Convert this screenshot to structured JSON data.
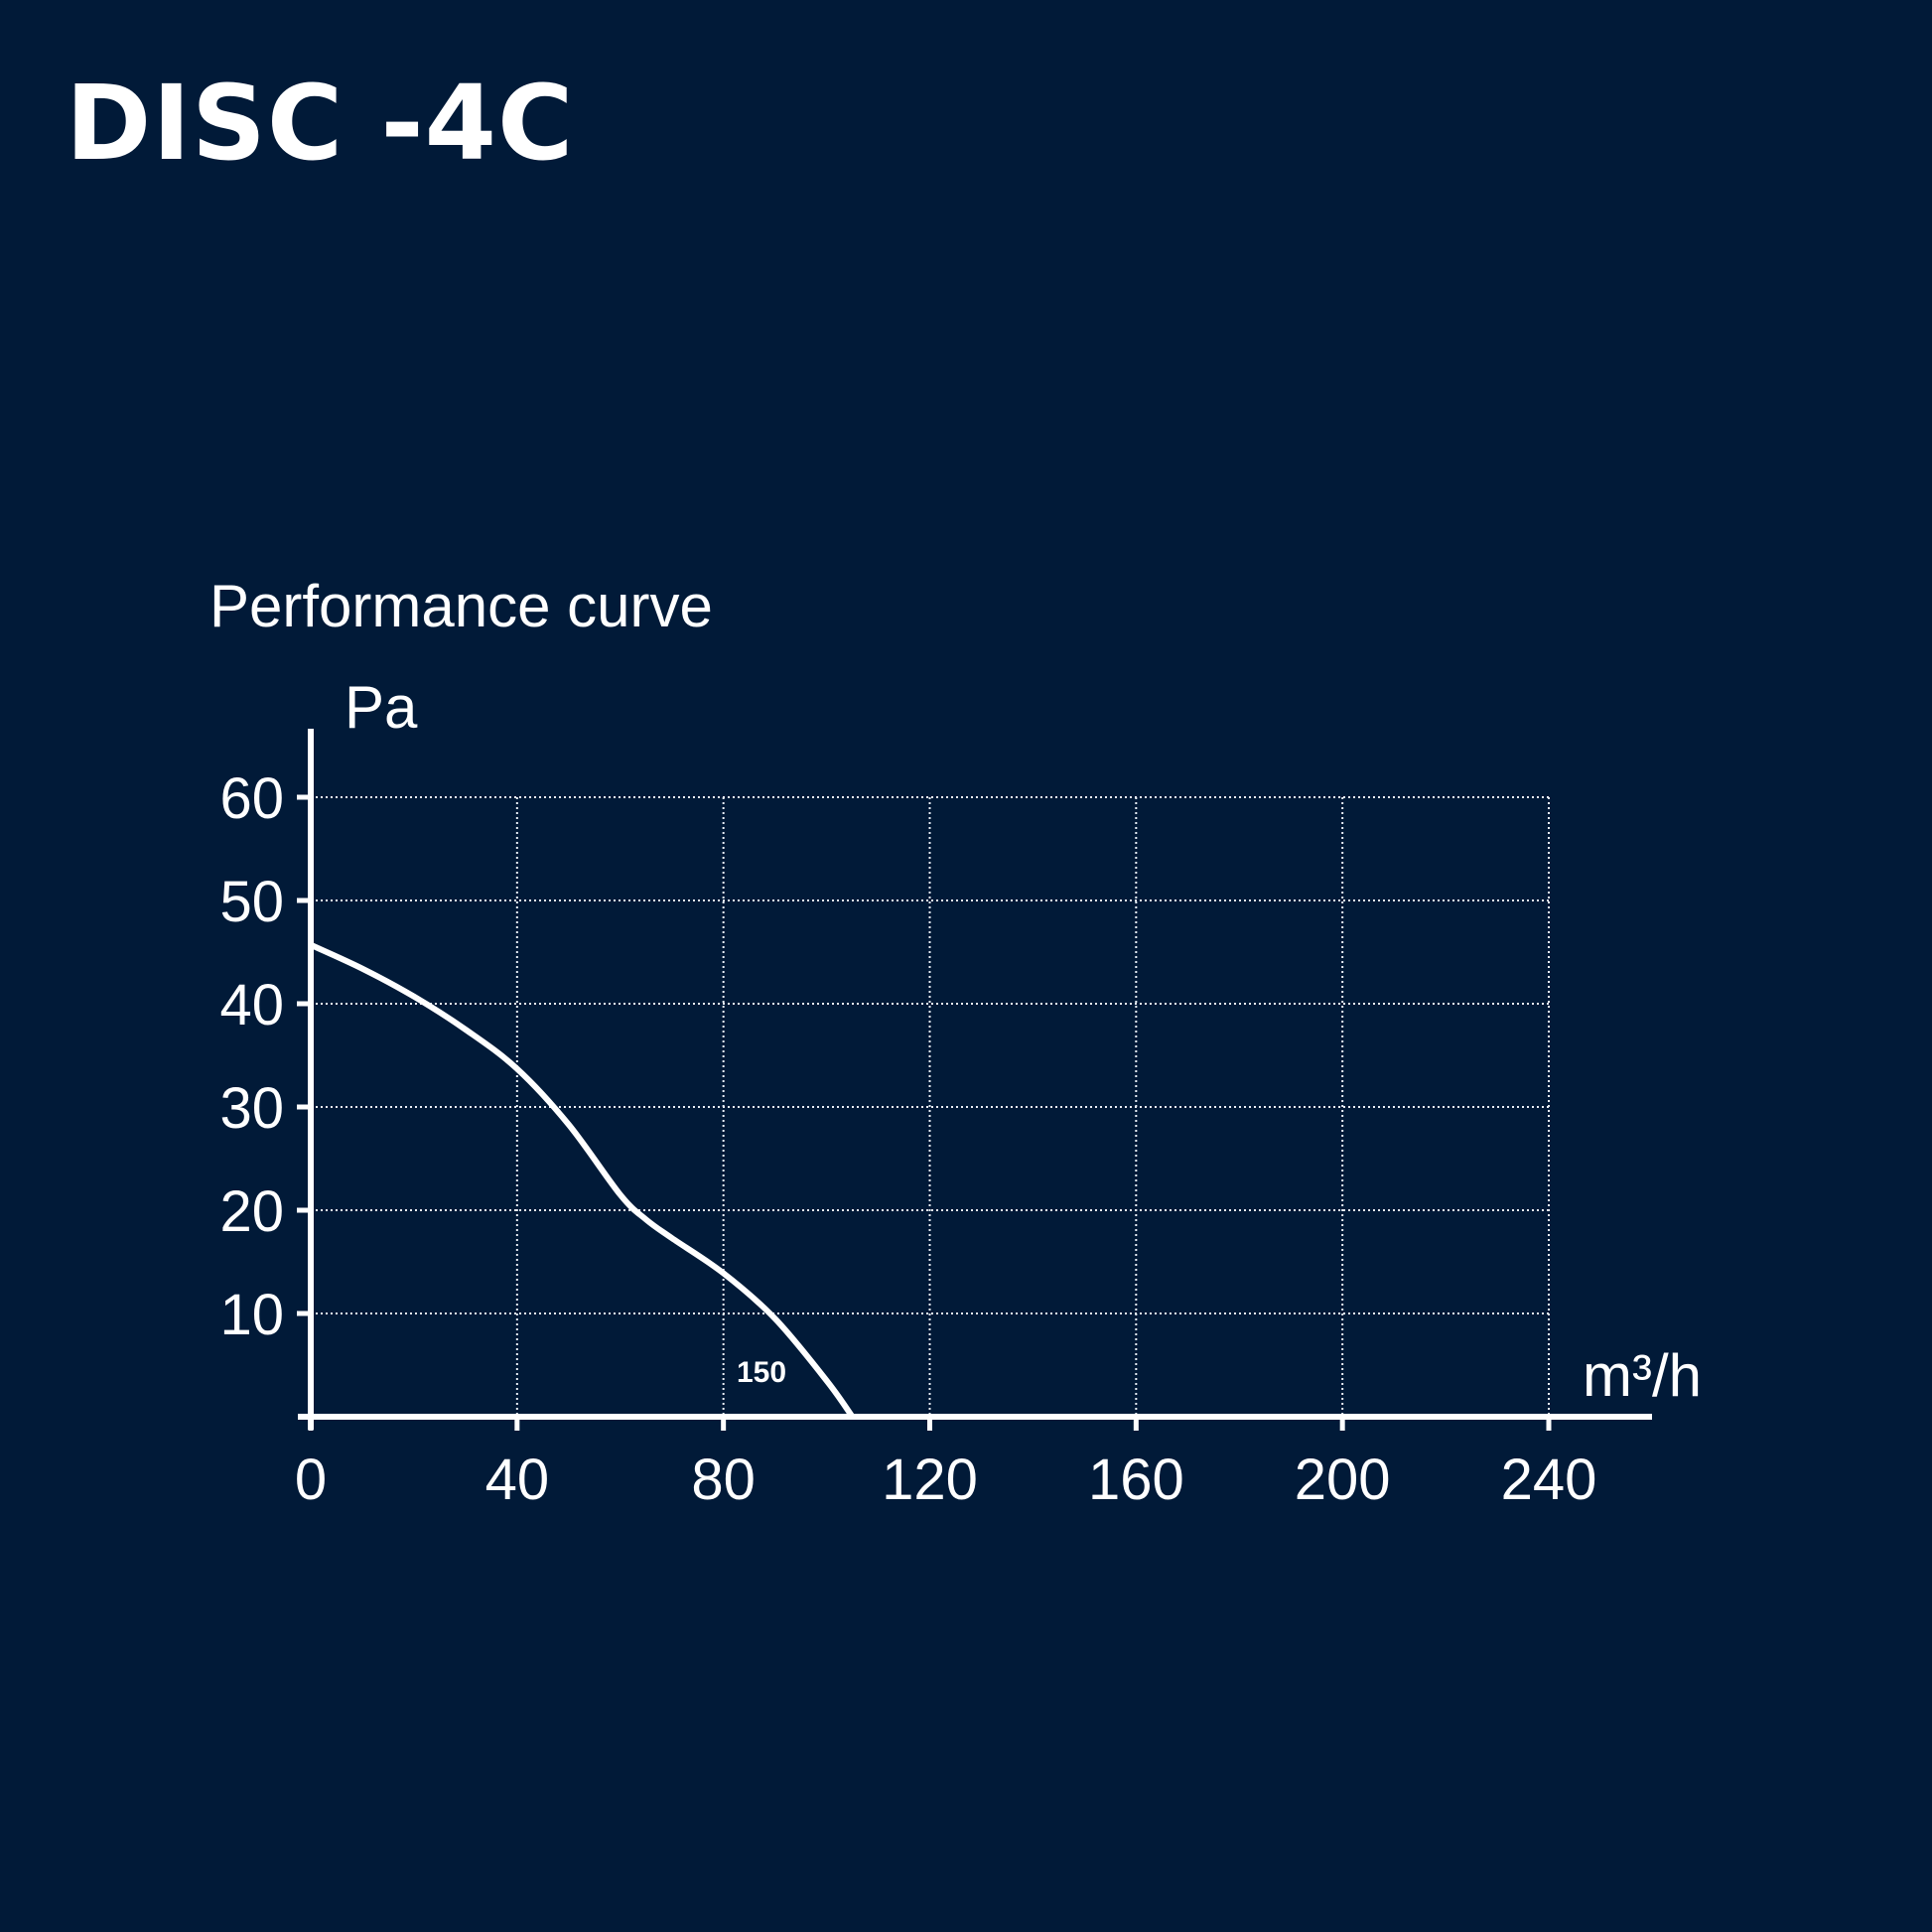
{
  "header": {
    "title": "DISC -4C"
  },
  "chart_data": {
    "type": "line",
    "title": "Performance curve",
    "ylabel": "Pa",
    "xlabel": "m³/h",
    "xlim": [
      0,
      240
    ],
    "ylim": [
      0,
      60
    ],
    "x_ticks": [
      "0",
      "40",
      "80",
      "120",
      "160",
      "200",
      "240"
    ],
    "y_ticks": [
      "10",
      "20",
      "30",
      "40",
      "50",
      "60"
    ],
    "grid": true,
    "series": [
      {
        "name": "150",
        "x": [
          0,
          10,
          20,
          30,
          40,
          50,
          60,
          65,
          70,
          80,
          90,
          100,
          105
        ],
        "y": [
          45.7,
          43.4,
          40.7,
          37.5,
          33.7,
          28.3,
          21.5,
          19.1,
          17.3,
          13.9,
          9.5,
          3.5,
          0
        ]
      }
    ]
  }
}
